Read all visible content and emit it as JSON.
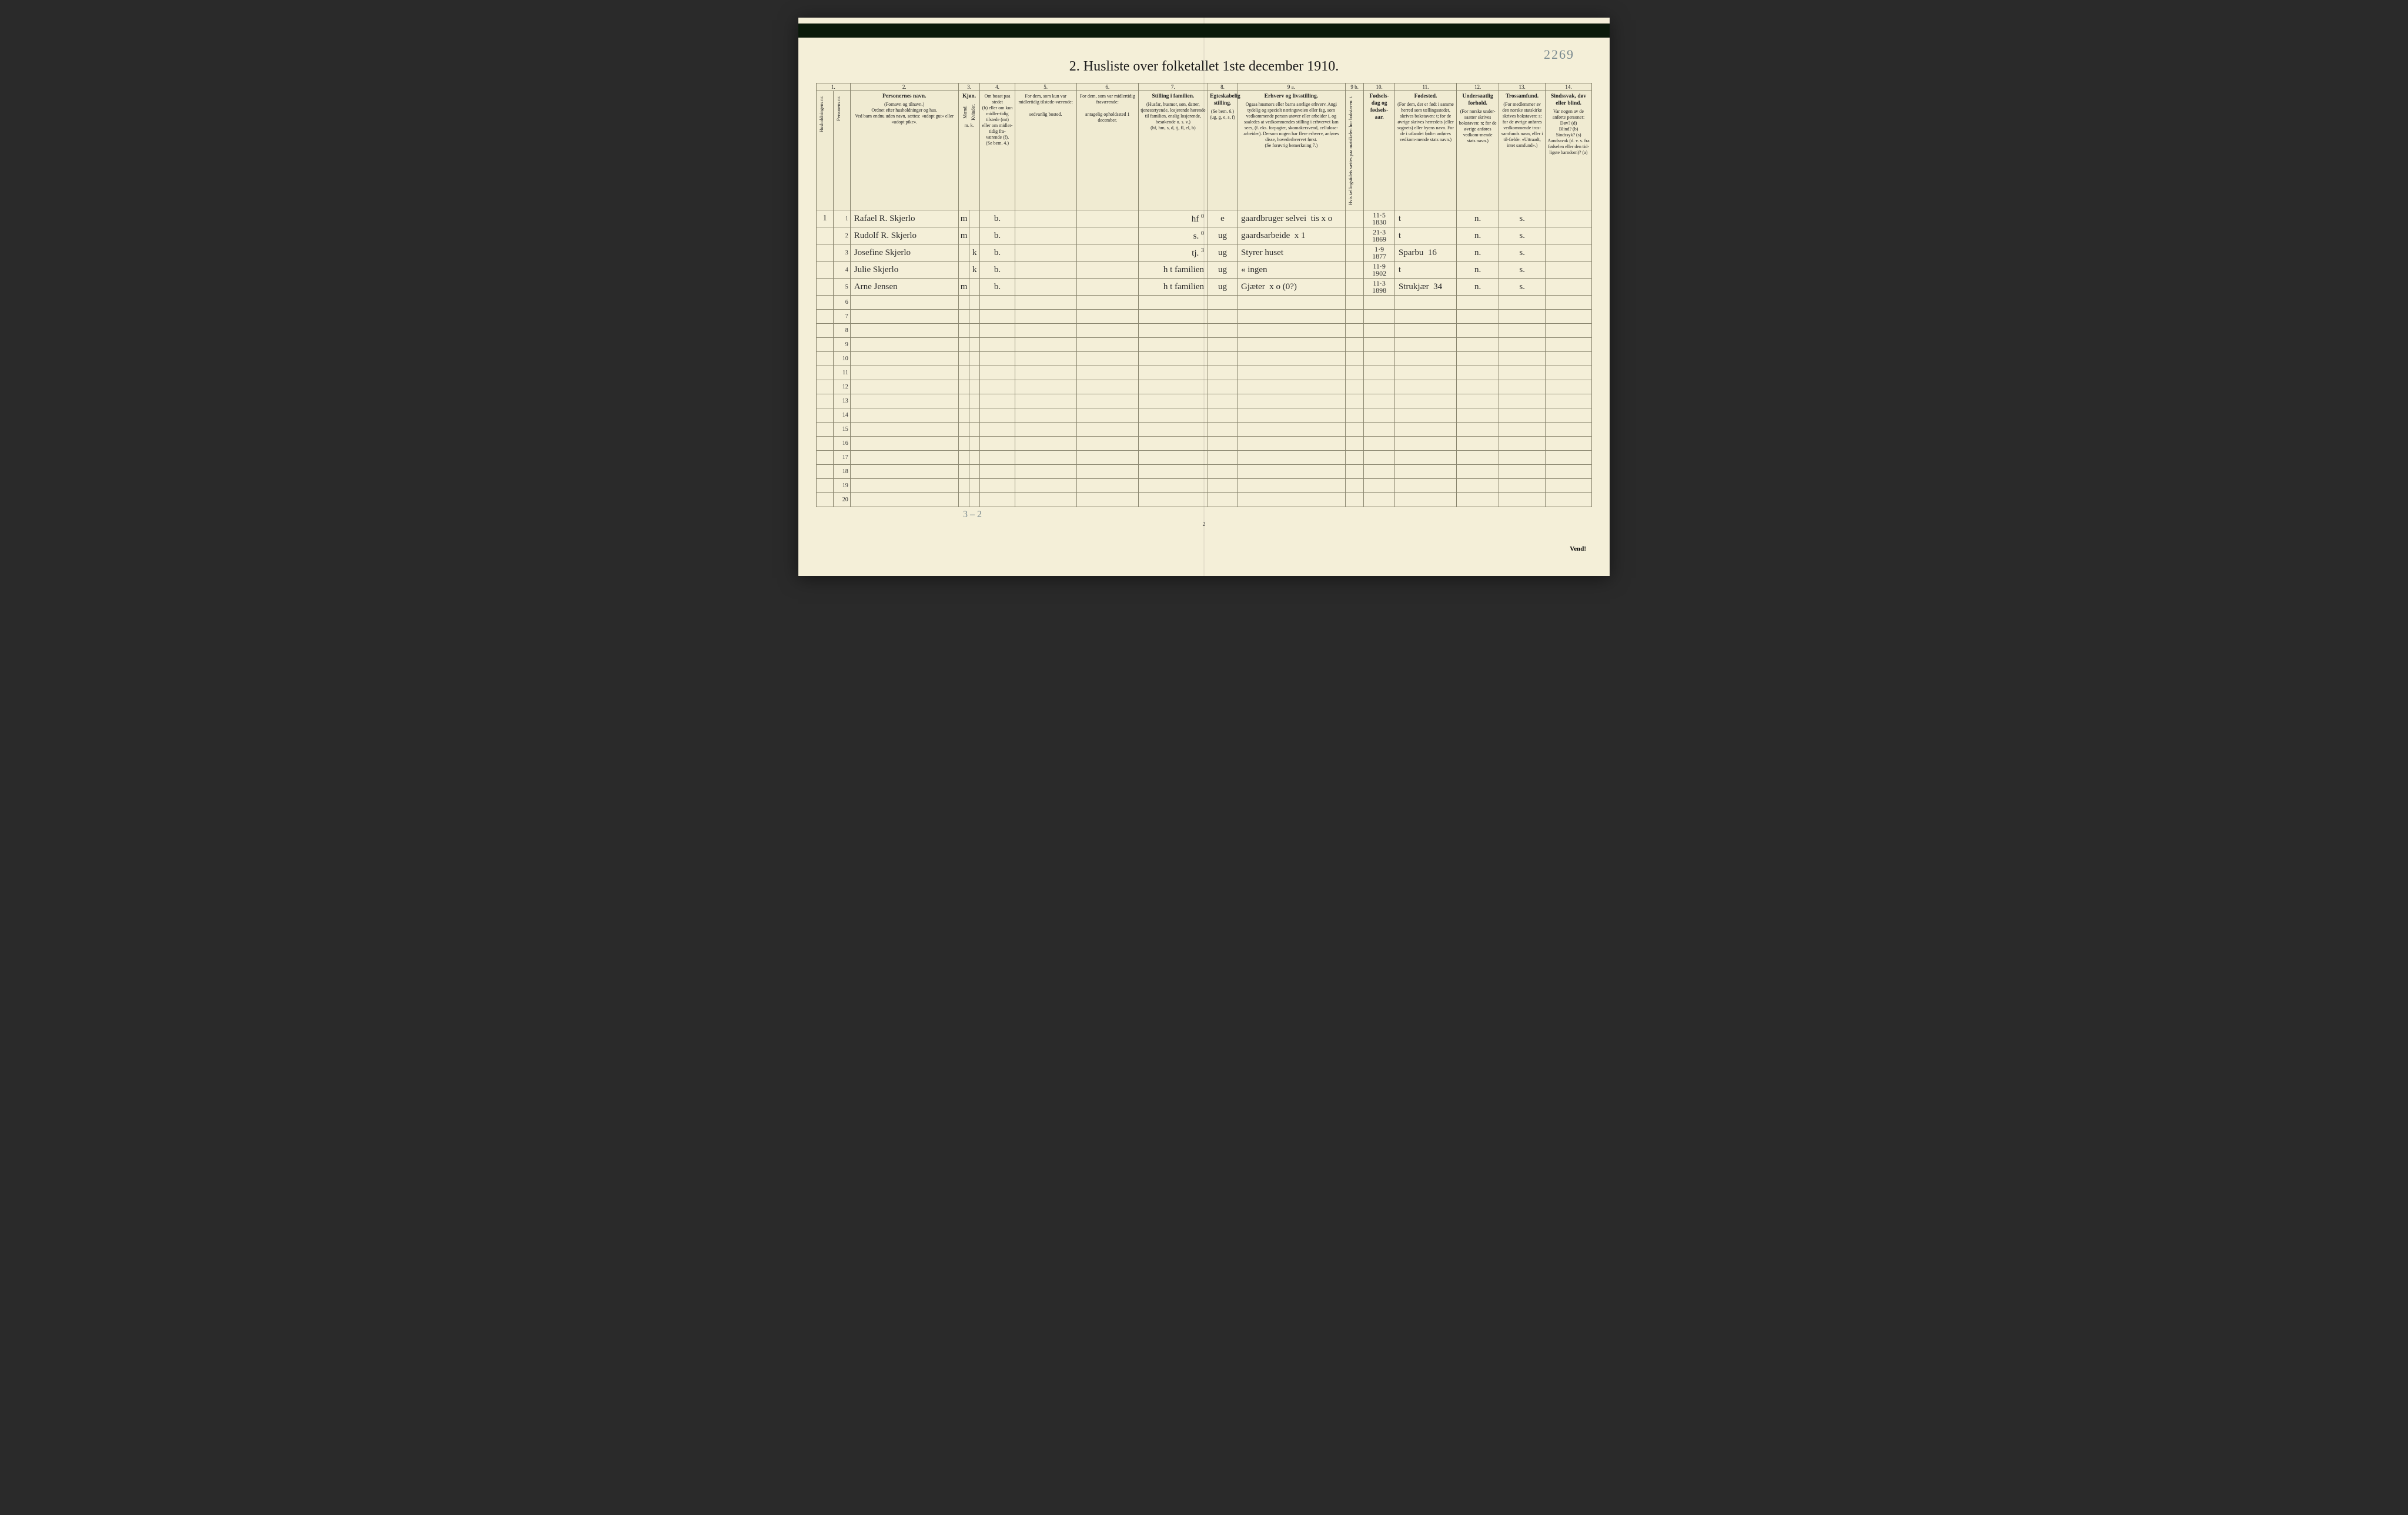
{
  "corner_number": "2269",
  "title": "2.  Husliste over folketallet 1ste december 1910.",
  "column_numbers": [
    "1.",
    "2.",
    "3.",
    "4.",
    "5.",
    "6.",
    "7.",
    "8.",
    "9 a.",
    "9 b.",
    "10.",
    "11.",
    "12.",
    "13.",
    "14."
  ],
  "headers": {
    "c1a": "Husholdningens nr.",
    "c1b": "Personens nr.",
    "c2_title": "Personernes navn.",
    "c2_sub1": "(Fornavn og tilnavn.)",
    "c2_sub2": "Ordnet efter husholdninger og hus.",
    "c2_sub3": "Ved barn endnu uden navn, sættes: «udopt gut» eller «udopt pike».",
    "c3_title": "Kjøn.",
    "c3_m": "Mænd.",
    "c3_k": "Kvinder.",
    "c3_mk": "m.  k.",
    "c4_l1": "Om bosat paa stedet",
    "c4_l2": "(b) eller om kun midler-tidig tilstede (mt) eller om midler-tidig fra-værende (f).",
    "c4_l3": "(Se bem. 4.)",
    "c5_l1": "For dem, som kun var midlertidig tilstede-værende:",
    "c5_l2": "sedvanlig bosted.",
    "c6_l1": "For dem, som var midlertidig fraværende:",
    "c6_l2": "antagelig opholdssted 1 december.",
    "c7_title": "Stilling i familien.",
    "c7_sub": "(Husfar, husmor, søn, datter, tjenestetyende, losjerende hørende til familien, enslig losjerende, besøkende o. s. v.)",
    "c7_sub2": "(hf, hm, s, d, tj, fl, el, b)",
    "c8_title": "Egteskabelig stilling.",
    "c8_sub": "(Se bem. 6.) (ug, g, e, s, f)",
    "c9a_title": "Erhverv og livsstilling.",
    "c9a_sub": "Ogsaa husmors eller barns særlige erhverv. Angi tydelig og specielt næringsveien eller fag, som vedkommende person utøver eller arbeider i, og saaledes at vedkommendes stilling i erhvervet kan sees, (f. eks. forpagter, skomakersvend, cellulose-arbeider). Dersom nogen har flere erhverv, anføres disse, hovederhvervet først.",
    "c9a_sub2": "(Se forøvrig bemerkning 7.)",
    "c9b": "Hvis tællingstidets sættes paa matrikelen hor bokstaven: t.",
    "c10_title": "Fødsels-dag og fødsels-aar.",
    "c11_title": "Fødested.",
    "c11_sub": "(For dem, der er født i samme herred som tællingsstedet, skrives bokstaven: t; for de øvrige skrives herredets (eller sognets) eller byens navn. For de i utlandet fødte: anføres vedkom-mende stats navn.)",
    "c12_title": "Undersaatlig forhold.",
    "c12_sub": "(For norske under-saatter skrives bokstaven: n; for de øvrige anføres vedkom-mende stats navn.)",
    "c13_title": "Trossamfund.",
    "c13_sub": "(For medlemmer av den norske statskirke skrives bokstaven: s; for de øvrige anføres vedkommende tros-samfunds navn, eller i til-fælde: «Uttraadt, intet samfund».)",
    "c14_title": "Sindssvak, døv eller blind.",
    "c14_sub": "Var nogen av de anførte personer:\nDøv?   (d)\nBlind?  (b)\nSindssyk? (s)\nAandssvak (d. v. s. fra fødselen eller den tid-ligste barndom)?  (a)"
  },
  "rows": [
    {
      "hh": "1",
      "pn": "1",
      "name": "Rafael R. Skjerlo",
      "m": "m",
      "k": "",
      "res": "b.",
      "c5": "",
      "c6": "",
      "fam": "hf",
      "sup": "0",
      "egt": "e",
      "erhv": "gaardbruger selvei  tis x o",
      "c9b": "",
      "dob": "11·5\n1830",
      "fsted": "t",
      "und": "n.",
      "tro": "s.",
      "c14": ""
    },
    {
      "hh": "",
      "pn": "2",
      "name": "Rudolf R. Skjerlo",
      "m": "m",
      "k": "",
      "res": "b.",
      "c5": "",
      "c6": "",
      "fam": "s.",
      "sup": "0",
      "egt": "ug",
      "erhv": "gaardsarbeide  x 1",
      "c9b": "",
      "dob": "21·3\n1869",
      "fsted": "t",
      "und": "n.",
      "tro": "s.",
      "c14": ""
    },
    {
      "hh": "",
      "pn": "3",
      "name": "Josefine Skjerlo",
      "m": "",
      "k": "k",
      "res": "b.",
      "c5": "",
      "c6": "",
      "fam": "tj.",
      "sup": "3",
      "egt": "ug",
      "erhv": "Styrer huset",
      "c9b": "",
      "dob": "1·9\n1877",
      "fsted": "Sparbu  16",
      "und": "n.",
      "tro": "s.",
      "c14": ""
    },
    {
      "hh": "",
      "pn": "4",
      "name": "Julie Skjerlo",
      "m": "",
      "k": "k",
      "res": "b.",
      "c5": "",
      "c6": "",
      "fam": "h t familien",
      "sup": "",
      "egt": "ug",
      "erhv": "«  ingen",
      "c9b": "",
      "dob": "11·9\n1902",
      "fsted": "t",
      "und": "n.",
      "tro": "s.",
      "c14": ""
    },
    {
      "hh": "",
      "pn": "5",
      "name": "Arne Jensen",
      "m": "m",
      "k": "",
      "res": "b.",
      "c5": "",
      "c6": "",
      "fam": "h t familien",
      "sup": "",
      "egt": "ug",
      "erhv": "Gjæter  x o (0?)",
      "c9b": "",
      "dob": "11·3\n1898",
      "fsted": "Strukjær  34",
      "und": "n.",
      "tro": "s.",
      "c14": ""
    }
  ],
  "empty_row_count": 15,
  "footer_hand": "3 – 2",
  "page_number": "2",
  "vend": "Vend!",
  "colors": {
    "paper": "#f4efd8",
    "header_bg": "#f0ebd2",
    "border": "#8a866f",
    "ink_print": "#1a1a1a",
    "ink_hand": "#2b2b2b",
    "ink_pencil": "#7a8a8f"
  }
}
